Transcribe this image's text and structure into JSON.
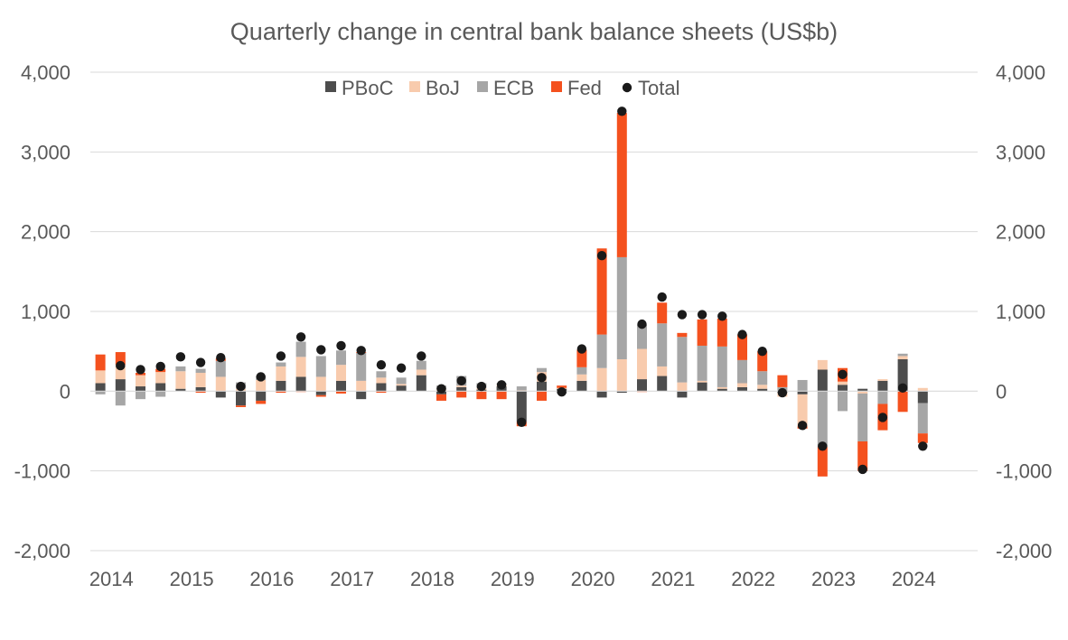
{
  "chart_data": {
    "type": "bar",
    "subtype": "stacked-bar-with-total-dots",
    "title": "Quarterly change in central bank balance sheets (US$b)",
    "xlabel": "",
    "ylabel": "",
    "ylim": [
      -2000,
      4000
    ],
    "y_ticks": [
      "-2,000",
      "-1,000",
      "0",
      "1,000",
      "2,000",
      "3,000",
      "4,000"
    ],
    "y_tick_values": [
      -2000,
      -1000,
      0,
      1000,
      2000,
      3000,
      4000
    ],
    "x_ticks": [
      "2014",
      "2015",
      "2016",
      "2017",
      "2018",
      "2019",
      "2020",
      "2021",
      "2022",
      "2023",
      "2024"
    ],
    "x_tick_years": [
      2014,
      2015,
      2016,
      2017,
      2018,
      2019,
      2020,
      2021,
      2022,
      2023,
      2024
    ],
    "grid": true,
    "legend_position": "top",
    "categories": [
      "2013Q4",
      "2014Q1",
      "2014Q2",
      "2014Q3",
      "2014Q4",
      "2015Q1",
      "2015Q2",
      "2015Q3",
      "2015Q4",
      "2016Q1",
      "2016Q2",
      "2016Q3",
      "2016Q4",
      "2017Q1",
      "2017Q2",
      "2017Q3",
      "2017Q4",
      "2018Q1",
      "2018Q2",
      "2018Q3",
      "2018Q4",
      "2019Q1",
      "2019Q2",
      "2019Q3",
      "2019Q4",
      "2020Q1",
      "2020Q2",
      "2020Q3",
      "2020Q4",
      "2021Q1",
      "2021Q2",
      "2021Q3",
      "2021Q4",
      "2022Q1",
      "2022Q2",
      "2022Q3",
      "2022Q4",
      "2023Q1",
      "2023Q2",
      "2023Q3",
      "2023Q4",
      "2024Q1"
    ],
    "series": [
      {
        "name": "PBoC",
        "color": "#4d4d4d",
        "values": [
          100,
          150,
          60,
          100,
          30,
          50,
          -80,
          -180,
          -120,
          130,
          180,
          -50,
          130,
          -100,
          100,
          70,
          200,
          -40,
          50,
          20,
          60,
          -380,
          120,
          30,
          130,
          -80,
          -20,
          150,
          190,
          -80,
          110,
          30,
          50,
          30,
          -20,
          -40,
          270,
          80,
          30,
          130,
          400,
          -150
        ]
      },
      {
        "name": "BoJ",
        "color": "#f8cbad",
        "values": [
          160,
          180,
          140,
          140,
          220,
          180,
          180,
          30,
          140,
          180,
          250,
          180,
          200,
          130,
          70,
          20,
          70,
          20,
          20,
          20,
          20,
          10,
          120,
          10,
          80,
          290,
          400,
          380,
          120,
          110,
          20,
          20,
          50,
          50,
          -50,
          -400,
          120,
          40,
          -30,
          20,
          40,
          40
        ]
      },
      {
        "name": "ECB",
        "color": "#a6a6a6",
        "values": [
          -40,
          -180,
          -100,
          -70,
          60,
          50,
          200,
          80,
          50,
          50,
          190,
          260,
          180,
          350,
          80,
          80,
          110,
          50,
          120,
          60,
          20,
          50,
          50,
          -30,
          90,
          420,
          1280,
          300,
          540,
          570,
          440,
          510,
          290,
          170,
          50,
          140,
          -700,
          -250,
          -600,
          -160,
          30,
          -380
        ]
      },
      {
        "name": "Fed",
        "color": "#f4511e",
        "values": [
          200,
          160,
          30,
          40,
          0,
          -20,
          30,
          -20,
          -40,
          -20,
          -10,
          -20,
          -30,
          10,
          -20,
          0,
          0,
          -80,
          -80,
          -100,
          -100,
          -60,
          -120,
          30,
          220,
          1080,
          1810,
          -10,
          260,
          50,
          330,
          350,
          320,
          250,
          150,
          -30,
          -370,
          170,
          -370,
          -330,
          -260,
          -120
        ]
      }
    ],
    "total": {
      "name": "Total",
      "color": "#1a1a1a",
      "values": [
        430,
        320,
        270,
        310,
        430,
        360,
        420,
        60,
        180,
        440,
        680,
        520,
        570,
        510,
        330,
        290,
        440,
        30,
        130,
        60,
        80,
        -390,
        170,
        -10,
        530,
        1700,
        3510,
        840,
        1180,
        960,
        960,
        940,
        710,
        500,
        -20,
        -430,
        -690,
        210,
        -980,
        -330,
        40,
        -690
      ]
    }
  }
}
